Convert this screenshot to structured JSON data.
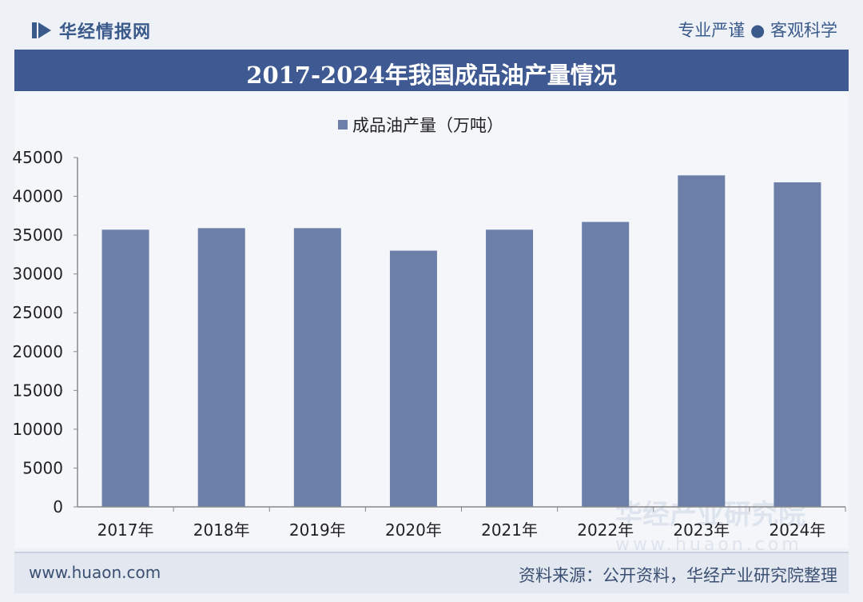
{
  "header": {
    "brand": "华经情报网",
    "slogan": "专业严谨 ● 客观科学"
  },
  "title": "2017-2024年我国成品油产量情况",
  "footer": {
    "site": "www.huaon.com",
    "source": "资料来源：公开资料，华经产业研究院整理"
  },
  "watermark": {
    "text": "华经产业研究院",
    "url": "www.huaon.com"
  },
  "colors": {
    "bar": "#6b7fa8",
    "title_bg": "#3f5a93",
    "axis": "#888888"
  },
  "chart_data": {
    "type": "bar",
    "title": "2017-2024年我国成品油产量情况",
    "categories": [
      "2017年",
      "2018年",
      "2019年",
      "2020年",
      "2021年",
      "2022年",
      "2023年",
      "2024年"
    ],
    "series": [
      {
        "name": "成品油产量（万吨）",
        "values": [
          35700,
          35900,
          35900,
          33000,
          35700,
          36700,
          42700,
          41800
        ]
      }
    ],
    "yticks": [
      0,
      5000,
      10000,
      15000,
      20000,
      25000,
      30000,
      35000,
      40000,
      45000
    ],
    "ylim": [
      0,
      45000
    ],
    "grid": false,
    "legend": "top-center",
    "xlabel": "",
    "ylabel": ""
  }
}
